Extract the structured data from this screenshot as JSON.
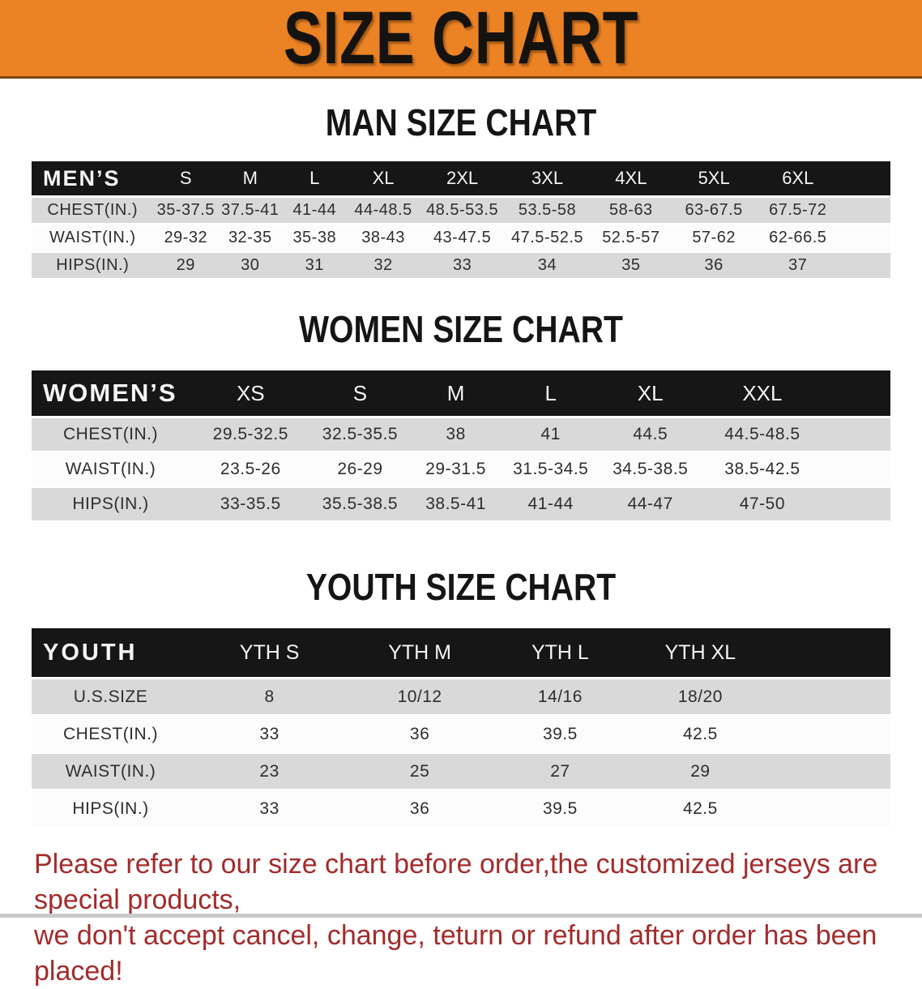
{
  "banner": {
    "title": "SIZE CHART"
  },
  "sections": [
    {
      "id": "men",
      "heading": "MAN SIZE CHART",
      "table": {
        "header": [
          "MEN’S",
          "S",
          "M",
          "L",
          "XL",
          "2XL",
          "3XL",
          "4XL",
          "5XL",
          "6XL"
        ],
        "rows": [
          [
            "CHEST(IN.)",
            "35-37.5",
            "37.5-41",
            "41-44",
            "44-48.5",
            "48.5-53.5",
            "53.5-58",
            "58-63",
            "63-67.5",
            "67.5-72"
          ],
          [
            "WAIST(IN.)",
            "29-32",
            "32-35",
            "35-38",
            "38-43",
            "43-47.5",
            "47.5-52.5",
            "52.5-57",
            "57-62",
            "62-66.5"
          ],
          [
            "HIPS(IN.)",
            "29",
            "30",
            "31",
            "32",
            "33",
            "34",
            "35",
            "36",
            "37"
          ]
        ]
      }
    },
    {
      "id": "women",
      "heading": "WOMEN SIZE CHART",
      "table": {
        "header": [
          "WOMEN’S",
          "XS",
          "S",
          "M",
          "L",
          "XL",
          "XXL"
        ],
        "rows": [
          [
            "CHEST(IN.)",
            "29.5-32.5",
            "32.5-35.5",
            "38",
            "41",
            "44.5",
            "44.5-48.5"
          ],
          [
            "WAIST(IN.)",
            "23.5-26",
            "26-29",
            "29-31.5",
            "31.5-34.5",
            "34.5-38.5",
            "38.5-42.5"
          ],
          [
            "HIPS(IN.)",
            "33-35.5",
            "35.5-38.5",
            "38.5-41",
            "41-44",
            "44-47",
            "47-50"
          ]
        ]
      }
    },
    {
      "id": "youth",
      "heading": "YOUTH SIZE CHART",
      "table": {
        "header": [
          "YOUTH",
          "YTH S",
          "YTH M",
          "YTH L",
          "YTH XL"
        ],
        "rows": [
          [
            "U.S.SIZE",
            "8",
            "10/12",
            "14/16",
            "18/20"
          ],
          [
            "CHEST(IN.)",
            "33",
            "36",
            "39.5",
            "42.5"
          ],
          [
            "WAIST(IN.)",
            "23",
            "25",
            "27",
            "29"
          ],
          [
            "HIPS(IN.)",
            "33",
            "36",
            "39.5",
            "42.5"
          ]
        ]
      }
    }
  ],
  "footer": {
    "line1": "Please refer to our size chart before order,the customized jerseys are special products,",
    "line2": "we don't accept cancel, change, teturn or refund after order has been placed!"
  },
  "colors": {
    "banner_bg": "#EB8325",
    "table_header_bg": "#161616",
    "row_stripe": "#D9D9D9",
    "row_alt": "#FCFCFC",
    "notice_text": "#A32B2B"
  }
}
